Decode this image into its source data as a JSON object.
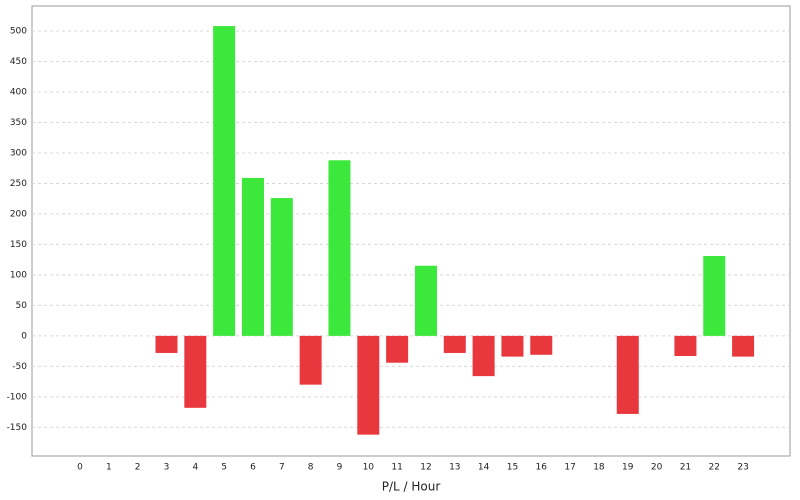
{
  "chart_data": {
    "type": "bar",
    "x_label": "P/L / Hour",
    "categories": [
      "0",
      "1",
      "2",
      "3",
      "4",
      "5",
      "6",
      "7",
      "8",
      "9",
      "10",
      "11",
      "12",
      "13",
      "14",
      "15",
      "16",
      "17",
      "18",
      "19",
      "20",
      "21",
      "22",
      "23"
    ],
    "values": [
      0,
      0,
      0,
      -28,
      -118,
      508,
      259,
      226,
      -80,
      288,
      -162,
      -44,
      115,
      -28,
      -66,
      -34,
      -31,
      0,
      0,
      -128,
      0,
      -33,
      131,
      -34
    ],
    "positive_color": "#3de83d",
    "negative_color": "#e8383d",
    "ylim": [
      -197,
      541
    ],
    "yticks": [
      -150,
      -100,
      -50,
      0,
      50,
      100,
      150,
      200,
      250,
      300,
      350,
      400,
      450,
      500
    ],
    "grid": true
  }
}
